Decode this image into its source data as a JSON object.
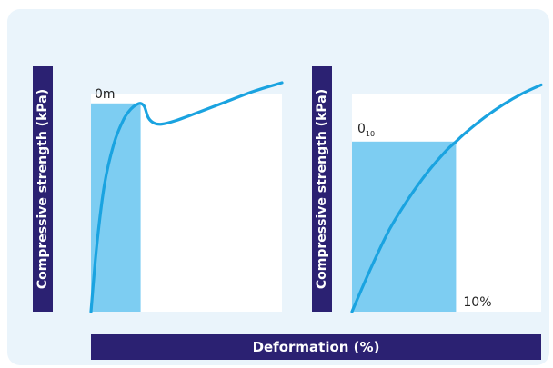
{
  "colors": {
    "panel_background": "#eaf4fb",
    "label_bar": "#2b2172",
    "curve": "#1aa3e0",
    "shaded_region": "#7dcdf2"
  },
  "shared_xlabel": "Deformation (%)",
  "chart_data": [
    {
      "type": "line",
      "ylabel": "Compressive strength (kPa)",
      "annotation": "0m",
      "xlim": [
        0,
        100
      ],
      "ylim": [
        0,
        100
      ],
      "grid": false,
      "series": [
        {
          "x": [
            0,
            3,
            7,
            12,
            17,
            21,
            24,
            26,
            28,
            30,
            33,
            37,
            44,
            55,
            70,
            85,
            100
          ],
          "y": [
            0,
            30,
            58,
            77,
            88,
            93,
            95,
            95.5,
            94,
            89,
            86.5,
            86,
            87.5,
            91,
            96,
            101,
            105
          ]
        }
      ],
      "shaded_region": {
        "x": [
          0,
          26
        ],
        "y": [
          0,
          95.5
        ]
      }
    },
    {
      "type": "line",
      "ylabel": "Compressive strength (kPa)",
      "annotation": "0",
      "annotation_subscript": "10",
      "threshold_label": "10%",
      "xlim": [
        0,
        100
      ],
      "ylim": [
        0,
        100
      ],
      "grid": false,
      "series": [
        {
          "x": [
            0,
            10,
            20,
            30,
            40,
            50,
            55,
            60,
            70,
            80,
            90,
            100
          ],
          "y": [
            0,
            20,
            38,
            52,
            64,
            74,
            78,
            82,
            89,
            95,
            100,
            104
          ]
        }
      ],
      "shaded_region": {
        "x": [
          0,
          55
        ],
        "y": [
          0,
          78
        ]
      }
    }
  ]
}
